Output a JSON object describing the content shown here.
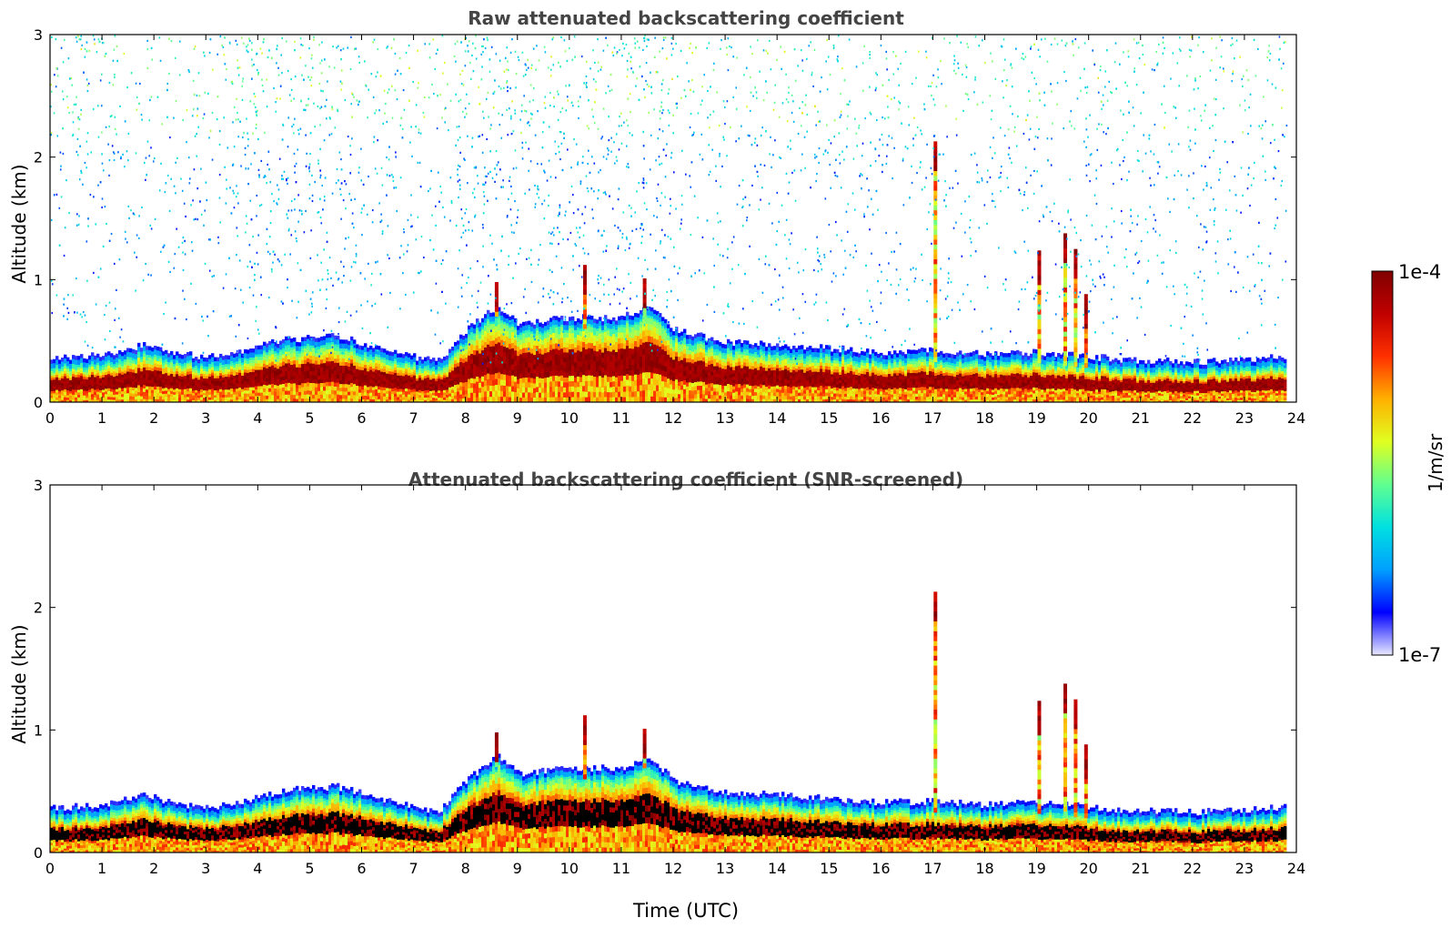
{
  "chart_data": [
    {
      "type": "heatmap",
      "title": "Raw attenuated backscattering coefficient",
      "xlabel": "",
      "ylabel": "Altitude (km)",
      "xlim": [
        0,
        24
      ],
      "ylim": [
        0,
        3
      ],
      "xticks": [
        "0",
        "1",
        "2",
        "3",
        "4",
        "5",
        "6",
        "7",
        "8",
        "9",
        "10",
        "11",
        "12",
        "13",
        "14",
        "15",
        "16",
        "17",
        "18",
        "19",
        "20",
        "21",
        "22",
        "23",
        "24"
      ],
      "yticks": [
        "0",
        "1",
        "2",
        "3"
      ],
      "screened": false,
      "data_end_hour": 23.8,
      "boundary_layer_top_km": {
        "hours": [
          0,
          1,
          1.8,
          2.5,
          3.2,
          4.5,
          5.5,
          6.5,
          7.0,
          7.5,
          8.0,
          8.6,
          9.0,
          10.0,
          11.0,
          11.5,
          12.0,
          13.0,
          14.0,
          15.0,
          16.0,
          17.0,
          18.0,
          19.0,
          20.0,
          21.0,
          22.0,
          23.0,
          23.8
        ],
        "top": [
          0.27,
          0.3,
          0.38,
          0.3,
          0.28,
          0.42,
          0.45,
          0.33,
          0.28,
          0.25,
          0.5,
          0.7,
          0.55,
          0.6,
          0.6,
          0.7,
          0.5,
          0.4,
          0.38,
          0.35,
          0.32,
          0.33,
          0.3,
          0.32,
          0.28,
          0.25,
          0.24,
          0.26,
          0.28
        ]
      },
      "plumes": [
        {
          "hour": 17.05,
          "top_km": 2.1
        },
        {
          "hour": 19.05,
          "top_km": 1.2
        },
        {
          "hour": 19.55,
          "top_km": 1.35
        },
        {
          "hour": 19.75,
          "top_km": 1.25
        },
        {
          "hour": 19.95,
          "top_km": 0.85
        },
        {
          "hour": 8.6,
          "top_km": 0.95
        },
        {
          "hour": 11.45,
          "top_km": 1.0
        },
        {
          "hour": 10.3,
          "top_km": 1.1
        }
      ],
      "mode": "raw"
    },
    {
      "type": "heatmap",
      "title": "Attenuated backscattering coefficient (SNR-screened)",
      "xlabel": "Time (UTC)",
      "ylabel": "Altitude (km)",
      "xlim": [
        0,
        24
      ],
      "ylim": [
        0,
        3
      ],
      "xticks": [
        "0",
        "1",
        "2",
        "3",
        "4",
        "5",
        "6",
        "7",
        "8",
        "9",
        "10",
        "11",
        "12",
        "13",
        "14",
        "15",
        "16",
        "17",
        "18",
        "19",
        "20",
        "21",
        "22",
        "23",
        "24"
      ],
      "yticks": [
        "0",
        "1",
        "2",
        "3"
      ],
      "screened": true,
      "data_end_hour": 23.8,
      "mode": "screened"
    }
  ],
  "colorbar": {
    "label": "1/m/sr",
    "max_label": "1e-4",
    "min_label": "1e-7",
    "scale": "log",
    "colors": [
      "#e8e8ff",
      "#0000ff",
      "#00a0ff",
      "#00e0e0",
      "#60ff90",
      "#e0ff20",
      "#ffb000",
      "#ff3000",
      "#c00000",
      "#800000"
    ]
  }
}
